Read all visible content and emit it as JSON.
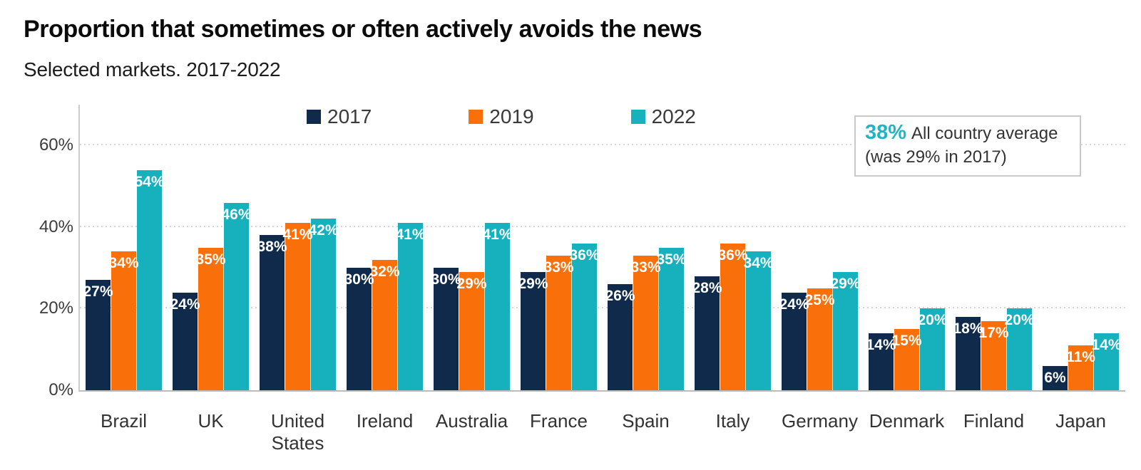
{
  "title": "Proportion that sometimes or often actively avoids the news",
  "subtitle": "Selected markets. 2017-2022",
  "annotation": {
    "value": "38%",
    "label": "All country average",
    "note": "(was 29% in 2017)"
  },
  "colors": {
    "series_2017": "#0f2a4b",
    "series_2019": "#f9700a",
    "series_2022": "#17b1be",
    "accent_teal": "#1fb6c4",
    "grid": "#d6d6d6",
    "axis": "#bcbcbc"
  },
  "chart_data": {
    "type": "bar",
    "title": "Proportion that sometimes or often actively avoids the news",
    "subtitle": "Selected markets. 2017-2022",
    "categories": [
      "Brazil",
      "UK",
      "United States",
      "Ireland",
      "Australia",
      "France",
      "Spain",
      "Italy",
      "Germany",
      "Denmark",
      "Finland",
      "Japan"
    ],
    "series": [
      {
        "name": "2017",
        "color": "#0f2a4b",
        "values": [
          27,
          24,
          38,
          30,
          30,
          29,
          26,
          28,
          24,
          14,
          18,
          6
        ]
      },
      {
        "name": "2019",
        "color": "#f9700a",
        "values": [
          34,
          35,
          41,
          32,
          29,
          33,
          33,
          36,
          25,
          15,
          17,
          11
        ]
      },
      {
        "name": "2022",
        "color": "#17b1be",
        "values": [
          54,
          46,
          42,
          41,
          41,
          36,
          35,
          34,
          29,
          20,
          20,
          14
        ]
      }
    ],
    "bar_label_format": "{value}%",
    "ylim": [
      0,
      70
    ],
    "yticks": [
      0,
      20,
      40,
      60
    ],
    "ytick_format": "{value}%",
    "grid": "horizontal dotted",
    "legend_position": "top",
    "annotation": "38% All country average (was 29% in 2017)"
  }
}
